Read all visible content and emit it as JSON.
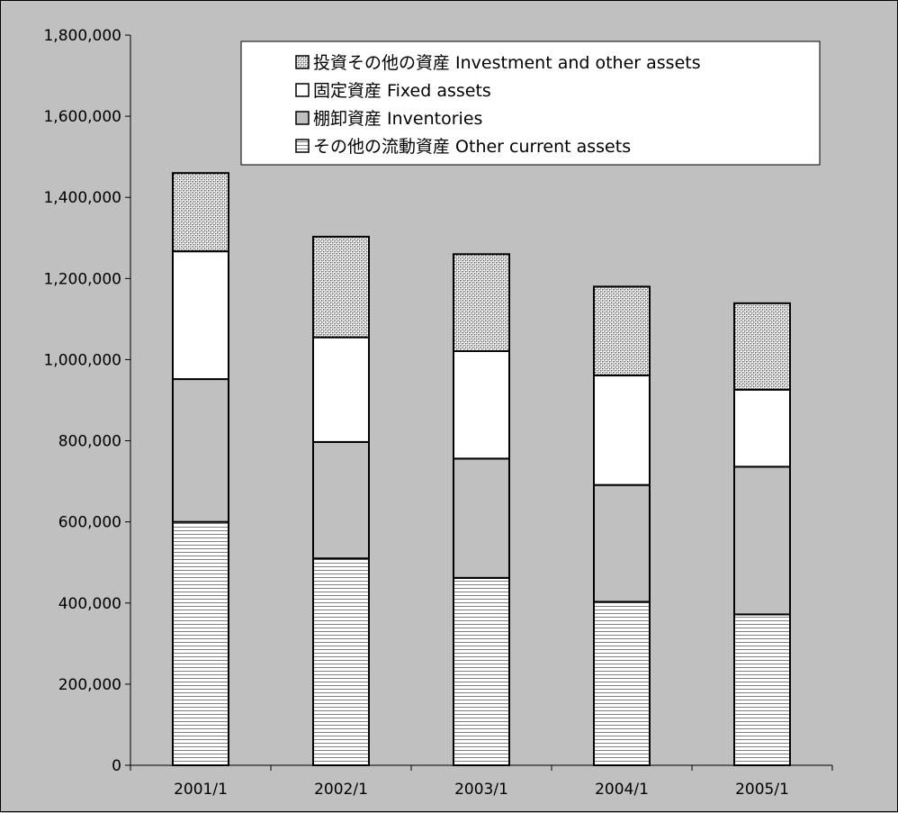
{
  "chart_data": {
    "type": "bar",
    "stacked": true,
    "title": "",
    "xlabel": "",
    "ylabel": "",
    "categories": [
      "2001/1",
      "2002/1",
      "2003/1",
      "2004/1",
      "2005/1"
    ],
    "ylim": [
      0,
      1800000
    ],
    "yticks": [
      "0",
      "200,000",
      "400,000",
      "600,000",
      "800,000",
      "1,000,000",
      "1,200,000",
      "1,400,000",
      "1,600,000",
      "1,800,000"
    ],
    "grid": false,
    "legend_position": "top-right",
    "series": [
      {
        "name": "その他の流動資産 Other current assets",
        "pattern": "horizontal-lines",
        "values": [
          600000,
          510000,
          462000,
          403000,
          372000
        ]
      },
      {
        "name": "棚卸資産 Inventories",
        "pattern": "gray",
        "values": [
          352000,
          287000,
          294000,
          288000,
          364000
        ]
      },
      {
        "name": "固定資産 Fixed assets",
        "pattern": "white",
        "values": [
          315000,
          258000,
          265000,
          270000,
          190000
        ]
      },
      {
        "name": "投資その他の資産 Investment and other assets",
        "pattern": "crosshatch",
        "values": [
          193000,
          248000,
          239000,
          219000,
          213000
        ]
      }
    ],
    "legend_order": [
      3,
      2,
      1,
      0
    ],
    "colors": {
      "background": "#c0c0c0",
      "gray": "#c0c0c0",
      "white": "#ffffff",
      "line": "#000000"
    }
  }
}
